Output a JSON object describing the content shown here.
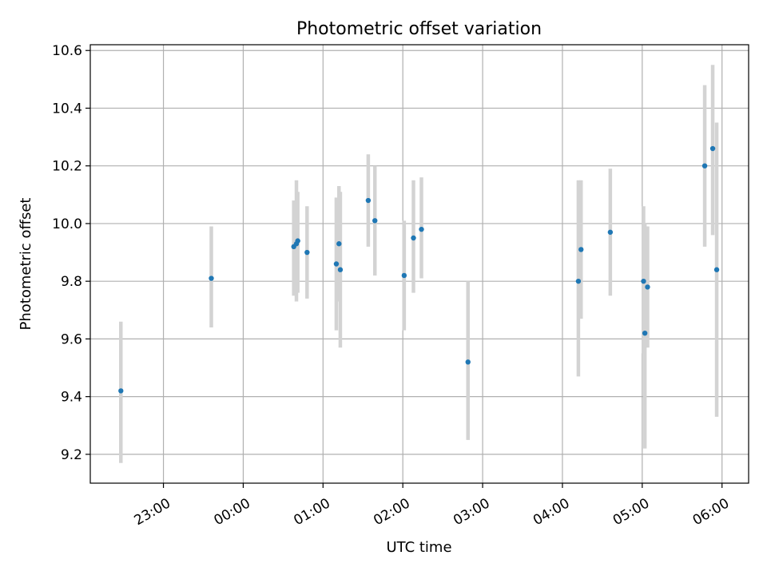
{
  "chart_data": {
    "type": "scatter",
    "title": "Photometric offset variation",
    "xlabel": "UTC time",
    "ylabel": "Photometric offset",
    "x_ticks": [
      "23:00",
      "00:00",
      "01:00",
      "02:00",
      "03:00",
      "04:00",
      "05:00",
      "06:00"
    ],
    "y_ticks": [
      "9.2",
      "9.4",
      "9.6",
      "9.8",
      "10.0",
      "10.2",
      "10.4",
      "10.6"
    ],
    "xlim": [
      "22:05",
      "06:20"
    ],
    "ylim": [
      9.1,
      10.62
    ],
    "grid": true,
    "legend": false,
    "point_color": "#1f77b4",
    "errorbar_color": "#d3d3d3",
    "points": [
      {
        "t": "22:28",
        "y": 9.42,
        "lo": 9.17,
        "hi": 9.66
      },
      {
        "t": "23:36",
        "y": 9.81,
        "lo": 9.64,
        "hi": 9.99
      },
      {
        "t": "00:38",
        "y": 9.92,
        "lo": 9.75,
        "hi": 10.08
      },
      {
        "t": "00:40",
        "y": 9.93,
        "lo": 9.73,
        "hi": 10.15
      },
      {
        "t": "00:41",
        "y": 9.94,
        "lo": 9.76,
        "hi": 10.11
      },
      {
        "t": "00:48",
        "y": 9.9,
        "lo": 9.74,
        "hi": 10.06
      },
      {
        "t": "01:10",
        "y": 9.86,
        "lo": 9.63,
        "hi": 10.09
      },
      {
        "t": "01:12",
        "y": 9.93,
        "lo": 9.73,
        "hi": 10.13
      },
      {
        "t": "01:13",
        "y": 9.84,
        "lo": 9.57,
        "hi": 10.11
      },
      {
        "t": "01:34",
        "y": 10.08,
        "lo": 9.92,
        "hi": 10.24
      },
      {
        "t": "01:39",
        "y": 10.01,
        "lo": 9.82,
        "hi": 10.2
      },
      {
        "t": "02:01",
        "y": 9.82,
        "lo": 9.63,
        "hi": 10.01
      },
      {
        "t": "02:08",
        "y": 9.95,
        "lo": 9.76,
        "hi": 10.15
      },
      {
        "t": "02:14",
        "y": 9.98,
        "lo": 9.81,
        "hi": 10.16
      },
      {
        "t": "02:49",
        "y": 9.52,
        "lo": 9.25,
        "hi": 9.8
      },
      {
        "t": "04:12",
        "y": 9.8,
        "lo": 9.47,
        "hi": 10.15
      },
      {
        "t": "04:14",
        "y": 9.91,
        "lo": 9.67,
        "hi": 10.15
      },
      {
        "t": "04:36",
        "y": 9.97,
        "lo": 9.75,
        "hi": 10.19
      },
      {
        "t": "05:01",
        "y": 9.8,
        "lo": 9.55,
        "hi": 10.06
      },
      {
        "t": "05:02",
        "y": 9.62,
        "lo": 9.22,
        "hi": 10.0
      },
      {
        "t": "05:04",
        "y": 9.78,
        "lo": 9.57,
        "hi": 9.99
      },
      {
        "t": "05:47",
        "y": 10.2,
        "lo": 9.92,
        "hi": 10.48
      },
      {
        "t": "05:53",
        "y": 10.26,
        "lo": 9.96,
        "hi": 10.55
      },
      {
        "t": "05:56",
        "y": 9.84,
        "lo": 9.33,
        "hi": 10.35
      }
    ]
  }
}
